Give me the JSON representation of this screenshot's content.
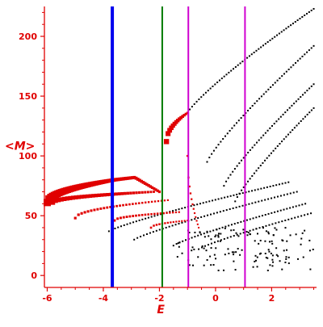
{
  "chart_data": {
    "type": "scatter",
    "title": "",
    "xlabel": "E",
    "ylabel": "<M>",
    "xlim": [
      -6.1,
      3.6
    ],
    "ylim": [
      -10,
      225
    ],
    "grid": false,
    "x_ticks": [
      -6,
      -4,
      -2,
      0,
      2
    ],
    "y_ticks": [
      0,
      50,
      100,
      150,
      200
    ],
    "x_tick_labels": [
      "-6",
      "-4",
      "-2",
      "0",
      "2"
    ],
    "y_tick_labels": [
      "0",
      "50",
      "100",
      "150",
      "200"
    ],
    "colors": {
      "axes": "#e00000",
      "red_points": "#e00000",
      "black_points": "#000000",
      "line_blue": "#0000ee",
      "line_green": "#007a00",
      "line_magenta": "#d000d0"
    },
    "vertical_lines": [
      {
        "x": -3.68,
        "color": "#0000ee",
        "width": 4
      },
      {
        "x": -1.9,
        "color": "#007a00",
        "width": 2
      },
      {
        "x": -0.97,
        "color": "#d000d0",
        "width": 2
      },
      {
        "x": 1.05,
        "color": "#d000d0",
        "width": 2
      }
    ],
    "red_series": [
      {
        "x0": -6.0,
        "x1": -3.6,
        "ya": 61,
        "yb": 80,
        "peak": false,
        "size_start": 4.5,
        "size_end": 2.2,
        "n": 40
      },
      {
        "x0": -3.6,
        "x1": -2.0,
        "ya": 80,
        "yb": 82,
        "yc": 70,
        "peak": true,
        "size_start": 2.2,
        "size_end": 1.6,
        "n": 26
      },
      {
        "x0": -5.8,
        "x1": -2.2,
        "ya": 61,
        "yb": 70,
        "peak": false,
        "size_start": 2.8,
        "size_end": 1.4,
        "n": 36
      },
      {
        "x0": -5.0,
        "x1": -1.7,
        "ya": 48,
        "yb": 63,
        "peak": false,
        "size_start": 1.6,
        "size_end": 1.1,
        "n": 30
      },
      {
        "x0": -3.6,
        "x1": -1.3,
        "ya": 46,
        "yb": 53,
        "peak": false,
        "size_start": 1.5,
        "size_end": 1.1,
        "n": 22
      },
      {
        "x0": -2.3,
        "x1": -1.0,
        "ya": 40,
        "yb": 46,
        "peak": false,
        "size_start": 1.3,
        "size_end": 1.0,
        "n": 14
      },
      {
        "x0": -1.75,
        "x1": -1.0,
        "ya": 112,
        "yb": 136,
        "peak": false,
        "size_start": 3.2,
        "size_end": 1.4,
        "n": 14
      },
      {
        "x0": -1.0,
        "x1": -0.6,
        "ya": 100,
        "yb": 40,
        "peak": false,
        "size_start": 1.2,
        "size_end": 1.0,
        "n": 12
      }
    ],
    "black_series": [
      {
        "x0": -1.0,
        "x1": 3.5,
        "ya": 136,
        "yb": 223,
        "n": 56
      },
      {
        "x0": -0.3,
        "x1": 3.5,
        "ya": 95,
        "yb": 192,
        "n": 48
      },
      {
        "x0": 0.3,
        "x1": 3.5,
        "ya": 75,
        "yb": 160,
        "n": 42
      },
      {
        "x0": 0.7,
        "x1": 3.5,
        "ya": 62,
        "yb": 140,
        "n": 38
      },
      {
        "x0": -3.8,
        "x1": 2.6,
        "ya": 37,
        "yb": 78,
        "n": 60
      },
      {
        "x0": -2.9,
        "x1": 2.9,
        "ya": 30,
        "yb": 70,
        "n": 52
      },
      {
        "x0": -1.5,
        "x1": 3.2,
        "ya": 25,
        "yb": 60,
        "n": 44
      },
      {
        "x0": -0.6,
        "x1": 3.4,
        "ya": 22,
        "yb": 52,
        "n": 36
      }
    ],
    "black_cloud": {
      "x_range": [
        -1.4,
        3.5
      ],
      "y_range": [
        4,
        40
      ],
      "n": 130
    }
  }
}
